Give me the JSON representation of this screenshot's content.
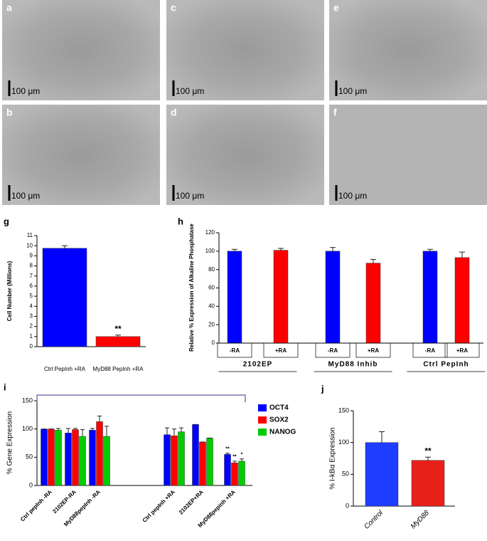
{
  "micrographs": [
    {
      "label": "a",
      "scale": "100 μm"
    },
    {
      "label": "c",
      "scale": "100 μm"
    },
    {
      "label": "e",
      "scale": "100 μm"
    },
    {
      "label": "b",
      "scale": "100 μm"
    },
    {
      "label": "d",
      "scale": "100 μm"
    },
    {
      "label": "f",
      "scale": "100 μm"
    }
  ],
  "chart_data": [
    {
      "panel": "g",
      "type": "bar",
      "ylabel": "Cell Number (Millions)",
      "categories": [
        "Ctrl PepInh +RA",
        "MyD88 PepInh +RA"
      ],
      "values": [
        9.75,
        1.0
      ],
      "errors": [
        0.25,
        0.15
      ],
      "colors": [
        "#0000ff",
        "#ff0000"
      ],
      "ylim": [
        0,
        11
      ],
      "yticks": [
        0,
        1,
        2,
        3,
        4,
        5,
        6,
        7,
        8,
        9,
        10,
        11
      ],
      "annotations": [
        "**"
      ]
    },
    {
      "panel": "h",
      "type": "bar",
      "ylabel": "Relative % Expression of  Alkaline Phosphatase",
      "categories": [
        "-RA",
        "+RA",
        "-RA",
        "+RA",
        "-RA",
        "+RA"
      ],
      "groups": [
        "2102EP",
        "MyD88  Inhib",
        "Ctrl PepInh"
      ],
      "values": [
        100,
        101,
        100,
        87,
        100,
        93
      ],
      "errors": [
        2,
        2,
        4,
        4,
        2,
        6
      ],
      "colors": [
        "#0000ff",
        "#ff0000",
        "#0000ff",
        "#ff0000",
        "#0000ff",
        "#ff0000"
      ],
      "ylim": [
        0,
        120
      ],
      "yticks": [
        0,
        20,
        40,
        60,
        80,
        100,
        120
      ]
    },
    {
      "panel": "i",
      "type": "bar",
      "ylabel": "% Gene Expression",
      "categories": [
        "Ctrl pepInh -RA",
        "2102EP-RA",
        "MyD88pepInh -RA",
        "Ctrl pepInh +RA",
        "2102EP+RA",
        "MyD88pepinh +RA"
      ],
      "series": [
        {
          "name": "OCT4",
          "color": "#0000ff",
          "values": [
            100,
            93,
            98,
            90,
            108,
            55
          ],
          "errors": [
            0,
            8,
            3,
            12,
            0,
            2
          ]
        },
        {
          "name": "SOX2",
          "color": "#ff0000",
          "values": [
            100,
            99,
            113,
            88,
            77,
            40
          ],
          "errors": [
            0,
            2,
            10,
            12,
            0,
            3
          ]
        },
        {
          "name": "NANOG",
          "color": "#00cc00",
          "values": [
            98,
            87,
            87,
            95,
            84,
            43
          ],
          "errors": [
            3,
            12,
            18,
            7,
            0,
            4
          ]
        }
      ],
      "ylim": [
        0,
        150
      ],
      "yticks": [
        0,
        50,
        100,
        150
      ],
      "annotations": [
        "**",
        "**",
        "*"
      ]
    },
    {
      "panel": "j",
      "type": "bar",
      "ylabel": "% I-kBα Expression",
      "categories": [
        "Control",
        "MyD88"
      ],
      "values": [
        100,
        72
      ],
      "errors": [
        17,
        5
      ],
      "colors": [
        "#1f3dff",
        "#e8201a"
      ],
      "ylim": [
        0,
        150
      ],
      "yticks": [
        0,
        50,
        100,
        150
      ],
      "annotations": [
        "**"
      ]
    }
  ]
}
